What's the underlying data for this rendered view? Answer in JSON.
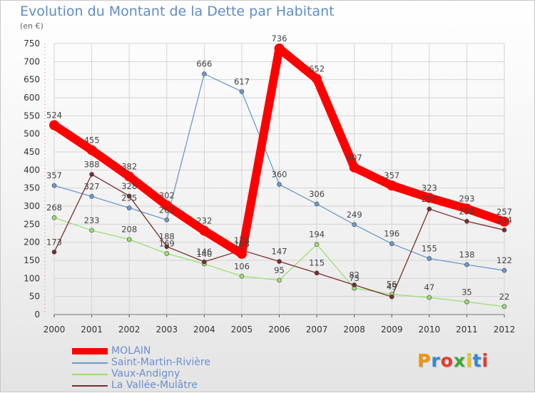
{
  "title": "Evolution du Montant de la Dette par Habitant",
  "unit_label": "(en €)",
  "logo_text": "Proxiti",
  "chart_data": {
    "type": "line",
    "title": "Evolution du Montant de la Dette par Habitant",
    "ylabel": "(en €)",
    "x": [
      "2000",
      "2001",
      "2002",
      "2003",
      "2004",
      "2005",
      "2006",
      "2007",
      "2008",
      "2009",
      "2010",
      "2011",
      "2012"
    ],
    "ylim": [
      0,
      750
    ],
    "yticks": [
      0,
      50,
      100,
      150,
      200,
      250,
      300,
      350,
      400,
      450,
      500,
      550,
      600,
      650,
      700,
      750
    ],
    "grid": true,
    "legend_position": "bottom-left",
    "series": [
      {
        "name": "MOLAIN",
        "color": "#ff0000",
        "values": [
          524,
          455,
          382,
          302,
          232,
          168,
          736,
          652,
          407,
          357,
          323,
          293,
          257
        ]
      },
      {
        "name": "Saint-Martin-Rivière",
        "color": "#6a9bcf",
        "values": [
          357,
          327,
          295,
          262,
          666,
          617,
          360,
          306,
          249,
          196,
          155,
          138,
          122
        ]
      },
      {
        "name": "Vaux-Andigny",
        "color": "#99e070",
        "values": [
          268,
          233,
          208,
          169,
          140,
          106,
          95,
          194,
          73,
          56,
          47,
          35,
          22
        ]
      },
      {
        "name": "La Vallée-Mulâtre",
        "color": "#7a2c2c",
        "values": [
          173,
          388,
          328,
          188,
          146,
          178,
          147,
          115,
          82,
          49,
          292,
          258,
          234
        ]
      }
    ]
  }
}
